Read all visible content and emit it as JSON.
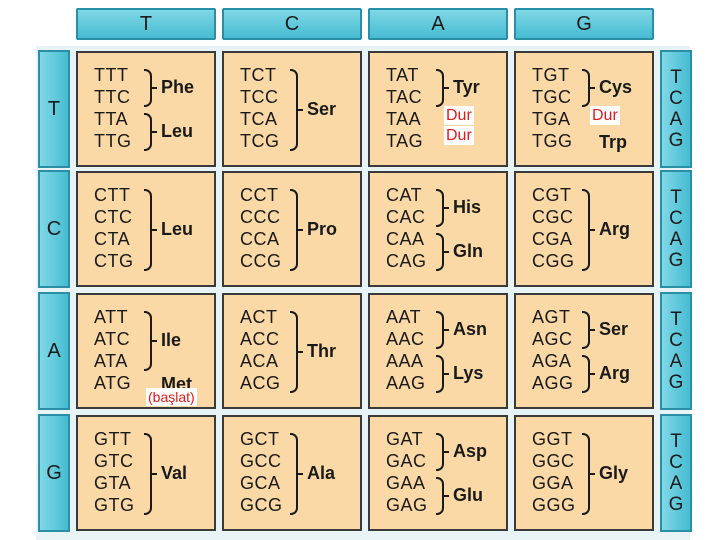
{
  "columns": [
    "T",
    "C",
    "A",
    "G"
  ],
  "rows": [
    "T",
    "C",
    "A",
    "G"
  ],
  "third_positions": [
    "T",
    "C",
    "A",
    "G"
  ],
  "cells": [
    [
      {
        "codons": [
          "TTT",
          "TTC",
          "TTA",
          "TTG"
        ],
        "groups": [
          {
            "label": "Phe",
            "rows": [
              0,
              1
            ]
          },
          {
            "label": "Leu",
            "rows": [
              2,
              3
            ]
          }
        ]
      },
      {
        "codons": [
          "TCT",
          "TCC",
          "TCA",
          "TCG"
        ],
        "groups": [
          {
            "label": "Ser",
            "rows": [
              0,
              3
            ]
          }
        ]
      },
      {
        "codons": [
          "TAT",
          "TAC",
          "TAA",
          "TAG"
        ],
        "groups": [
          {
            "label": "Tyr",
            "rows": [
              0,
              1
            ]
          }
        ]
      },
      {
        "codons": [
          "TGT",
          "TGC",
          "TGA",
          "TGG"
        ],
        "groups": [
          {
            "label": "Cys",
            "rows": [
              0,
              1
            ]
          },
          {
            "label": "Trp",
            "rows": [
              3,
              3
            ]
          }
        ]
      }
    ],
    [
      {
        "codons": [
          "CTT",
          "CTC",
          "CTA",
          "CTG"
        ],
        "groups": [
          {
            "label": "Leu",
            "rows": [
              0,
              3
            ]
          }
        ]
      },
      {
        "codons": [
          "CCT",
          "CCC",
          "CCA",
          "CCG"
        ],
        "groups": [
          {
            "label": "Pro",
            "rows": [
              0,
              3
            ]
          }
        ]
      },
      {
        "codons": [
          "CAT",
          "CAC",
          "CAA",
          "CAG"
        ],
        "groups": [
          {
            "label": "His",
            "rows": [
              0,
              1
            ]
          },
          {
            "label": "Gln",
            "rows": [
              2,
              3
            ]
          }
        ]
      },
      {
        "codons": [
          "CGT",
          "CGC",
          "CGA",
          "CGG"
        ],
        "groups": [
          {
            "label": "Arg",
            "rows": [
              0,
              3
            ]
          }
        ]
      }
    ],
    [
      {
        "codons": [
          "ATT",
          "ATC",
          "ATA",
          "ATG"
        ],
        "groups": [
          {
            "label": "Ile",
            "rows": [
              0,
              2
            ]
          },
          {
            "label": "Met",
            "rows": [
              3,
              3
            ]
          }
        ]
      },
      {
        "codons": [
          "ACT",
          "ACC",
          "ACA",
          "ACG"
        ],
        "groups": [
          {
            "label": "Thr",
            "rows": [
              0,
              3
            ]
          }
        ]
      },
      {
        "codons": [
          "AAT",
          "AAC",
          "AAA",
          "AAG"
        ],
        "groups": [
          {
            "label": "Asn",
            "rows": [
              0,
              1
            ]
          },
          {
            "label": "Lys",
            "rows": [
              2,
              3
            ]
          }
        ]
      },
      {
        "codons": [
          "AGT",
          "AGC",
          "AGA",
          "AGG"
        ],
        "groups": [
          {
            "label": "Ser",
            "rows": [
              0,
              1
            ]
          },
          {
            "label": "Arg",
            "rows": [
              2,
              3
            ]
          }
        ]
      }
    ],
    [
      {
        "codons": [
          "GTT",
          "GTC",
          "GTA",
          "GTG"
        ],
        "groups": [
          {
            "label": "Val",
            "rows": [
              0,
              3
            ]
          }
        ]
      },
      {
        "codons": [
          "GCT",
          "GCC",
          "GCA",
          "GCG"
        ],
        "groups": [
          {
            "label": "Ala",
            "rows": [
              0,
              3
            ]
          }
        ]
      },
      {
        "codons": [
          "GAT",
          "GAC",
          "GAA",
          "GAG"
        ],
        "groups": [
          {
            "label": "Asp",
            "rows": [
              0,
              1
            ]
          },
          {
            "label": "Glu",
            "rows": [
              2,
              3
            ]
          }
        ]
      },
      {
        "codons": [
          "GGT",
          "GGC",
          "GGA",
          "GGG"
        ],
        "groups": [
          {
            "label": "Gly",
            "rows": [
              0,
              3
            ]
          }
        ]
      }
    ]
  ],
  "annotations": {
    "stop_taa": "Dur",
    "stop_tag": "Dur",
    "stop_tga": "Dur",
    "start_atg": "(başlat)"
  },
  "colors": {
    "header": "#47bcd2",
    "cell": "#fbd9a6",
    "annotation": "#e01b1b"
  }
}
